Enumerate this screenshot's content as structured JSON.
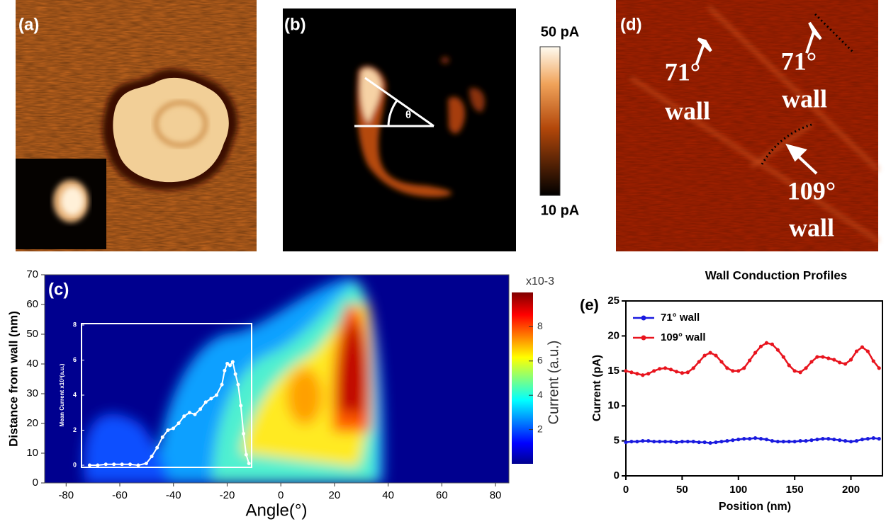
{
  "panels": {
    "a": {
      "label": "(a)"
    },
    "b": {
      "label": "(b)",
      "angle_symbol": "θ",
      "colorbar_max": "50 pA",
      "colorbar_min": "10 pA"
    },
    "d": {
      "label": "(d)",
      "annotations": [
        "71°",
        "wall",
        "71°",
        "wall",
        "109°",
        "wall"
      ]
    }
  },
  "chart_data": [
    {
      "type": "heatmap",
      "label": "(c)",
      "x_label": "Angle(°)",
      "y_label": "Distance from wall (nm)",
      "xlim": [
        -88,
        85
      ],
      "xticks": [
        -80,
        -60,
        -40,
        -20,
        0,
        20,
        40,
        60,
        80
      ],
      "ylim": [
        0,
        70
      ],
      "yticks": [
        0,
        10,
        20,
        30,
        40,
        50,
        60,
        70
      ],
      "colorbar_label": "Current (a.u.)",
      "colorbar_scale": "x10",
      "colorbar_exponent": "-3",
      "clim": [
        0,
        10
      ],
      "cticks": [
        2,
        4,
        6,
        8
      ],
      "colormap": "jet",
      "inset": {
        "type": "line",
        "y_label": "Mean Current x10³(a.u.)",
        "color": "#ffffff",
        "xlim": [
          -74,
          -11
        ],
        "ylim": [
          0,
          8
        ],
        "yticks": [
          0,
          2,
          4,
          6,
          8
        ],
        "x": [
          -71,
          -68,
          -65,
          -62,
          -59,
          -56,
          -53,
          -50,
          -48,
          -46,
          -44,
          -42,
          -40,
          -38,
          -36,
          -34,
          -32,
          -30,
          -28,
          -26,
          -24,
          -22,
          -21,
          -20,
          -19,
          -18,
          -17,
          -16,
          -15,
          -14,
          -13,
          -12
        ],
        "values": [
          0,
          0,
          0.05,
          0.05,
          0.05,
          0.05,
          0,
          0.1,
          0.5,
          1.0,
          1.6,
          2.0,
          2.1,
          2.4,
          2.8,
          3.0,
          2.9,
          3.2,
          3.6,
          3.8,
          4.0,
          4.6,
          5.4,
          5.8,
          5.7,
          5.9,
          5.2,
          4.6,
          3.4,
          1.8,
          0.6,
          0.1
        ]
      }
    },
    {
      "type": "line",
      "label": "(e)",
      "title": "Wall Conduction  Profiles",
      "x_label": "Position (nm)",
      "y_label": "Current (pA)",
      "xlim": [
        0,
        228
      ],
      "xticks": [
        0,
        50,
        100,
        150,
        200
      ],
      "ylim": [
        0,
        25
      ],
      "yticks": [
        0,
        5,
        10,
        15,
        20,
        25
      ],
      "x": [
        0,
        5,
        10,
        15,
        20,
        25,
        30,
        35,
        40,
        45,
        50,
        55,
        60,
        65,
        70,
        75,
        80,
        85,
        90,
        95,
        100,
        105,
        110,
        115,
        120,
        125,
        130,
        135,
        140,
        145,
        150,
        155,
        160,
        165,
        170,
        175,
        180,
        185,
        190,
        195,
        200,
        205,
        210,
        215,
        220,
        225,
        230
      ],
      "series": [
        {
          "name": "71° wall",
          "color": "#1a1adf",
          "values": [
            4.8,
            4.9,
            4.9,
            5.0,
            5.0,
            4.9,
            4.9,
            4.9,
            4.9,
            4.8,
            4.9,
            4.9,
            4.9,
            4.8,
            4.8,
            4.7,
            4.8,
            4.9,
            5.0,
            5.1,
            5.2,
            5.3,
            5.3,
            5.4,
            5.3,
            5.2,
            5.0,
            4.9,
            4.9,
            4.9,
            4.9,
            5.0,
            5.0,
            5.1,
            5.2,
            5.3,
            5.3,
            5.2,
            5.1,
            5.0,
            4.9,
            5.0,
            5.2,
            5.3,
            5.4,
            5.3,
            5.2
          ]
        },
        {
          "name": "109° wall",
          "color": "#e8141e",
          "values": [
            15,
            14.8,
            14.6,
            14.4,
            14.6,
            15,
            15.3,
            15.4,
            15.2,
            14.9,
            14.7,
            14.8,
            15.4,
            16.3,
            17.2,
            17.6,
            17.2,
            16.3,
            15.4,
            15,
            15,
            15.4,
            16.5,
            17.6,
            18.5,
            19,
            18.8,
            18,
            17,
            15.8,
            15,
            14.8,
            15.4,
            16.3,
            17,
            17,
            16.8,
            16.6,
            16.2,
            16,
            16.6,
            17.8,
            18.4,
            17.8,
            16.4,
            15.4,
            15.1
          ]
        }
      ]
    }
  ]
}
